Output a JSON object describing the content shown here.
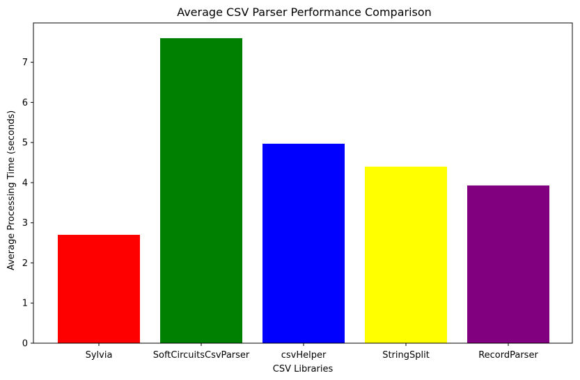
{
  "chart_data": {
    "type": "bar",
    "title": "Average CSV Parser Performance Comparison",
    "xlabel": "CSV Libraries",
    "ylabel": "Average Processing Time (seconds)",
    "categories": [
      "Sylvia",
      "SoftCircuitsCsvParser",
      "csvHelper",
      "StringSplit",
      "RecordParser"
    ],
    "values": [
      2.7,
      7.6,
      4.97,
      4.4,
      3.93
    ],
    "colors": [
      "#ff0000",
      "#008000",
      "#0000ff",
      "#ffff00",
      "#800080"
    ],
    "ylim": [
      0,
      7.98
    ],
    "yticks": [
      0,
      1,
      2,
      3,
      4,
      5,
      6,
      7
    ],
    "grid": false,
    "legend": "none"
  }
}
